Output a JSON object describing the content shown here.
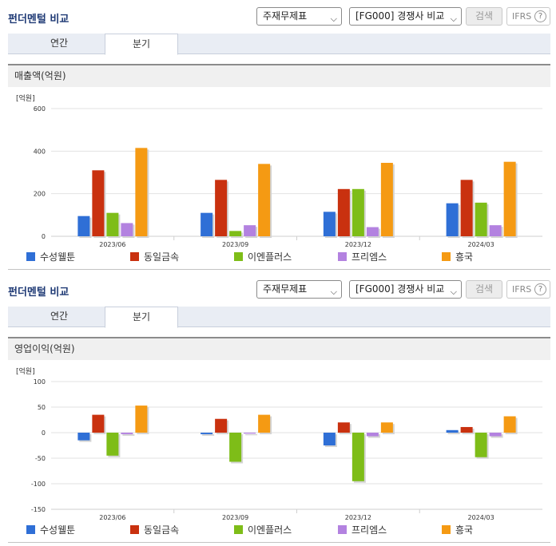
{
  "panels": [
    {
      "title": "펀더멘털 비교",
      "select_statement": "주재무제표",
      "select_compare": "[FG000] 경쟁사 비교",
      "search_label": "검색",
      "ifrs_label": "IFRS",
      "ifrs_help": "?",
      "tabs": [
        "연간",
        "분기"
      ],
      "active_tab": "분기",
      "section_label": "매출액(억원)"
    },
    {
      "title": "펀더멘털 비교",
      "select_statement": "주재무제표",
      "select_compare": "[FG000] 경쟁사 비교",
      "search_label": "검색",
      "ifrs_label": "IFRS",
      "ifrs_help": "?",
      "tabs": [
        "연간",
        "분기"
      ],
      "active_tab": "분기",
      "section_label": "영업이익(억원)"
    }
  ],
  "chart_data": [
    {
      "type": "bar",
      "unit_label": "[억원]",
      "categories": [
        "2023/06",
        "2023/09",
        "2023/12",
        "2024/03"
      ],
      "ylim": [
        0,
        600
      ],
      "yticks": [
        0,
        200,
        400,
        600
      ],
      "grid": true,
      "legend_position": "bottom",
      "series": [
        {
          "name": "수성웰툰",
          "color": "#2f6fd6",
          "values": [
            95,
            110,
            115,
            155
          ]
        },
        {
          "name": "동일금속",
          "color": "#c9310f",
          "values": [
            310,
            265,
            222,
            265
          ]
        },
        {
          "name": "이엔플러스",
          "color": "#7ebd18",
          "values": [
            110,
            25,
            222,
            158
          ]
        },
        {
          "name": "프리엠스",
          "color": "#b382e0",
          "values": [
            62,
            52,
            43,
            52
          ]
        },
        {
          "name": "흥국",
          "color": "#f59a13",
          "values": [
            415,
            340,
            345,
            350
          ]
        }
      ]
    },
    {
      "type": "bar",
      "unit_label": "[억원]",
      "categories": [
        "2023/06",
        "2023/09",
        "2023/12",
        "2024/03"
      ],
      "ylim": [
        -150,
        100
      ],
      "yticks": [
        -150,
        -100,
        -50,
        0,
        50,
        100
      ],
      "grid": true,
      "legend_position": "bottom",
      "series": [
        {
          "name": "수성웰툰",
          "color": "#2f6fd6",
          "values": [
            -15,
            -3,
            -25,
            5
          ]
        },
        {
          "name": "동일금속",
          "color": "#c9310f",
          "values": [
            35,
            27,
            20,
            11
          ]
        },
        {
          "name": "이엔플러스",
          "color": "#7ebd18",
          "values": [
            -45,
            -57,
            -95,
            -48
          ]
        },
        {
          "name": "프리엠스",
          "color": "#b382e0",
          "values": [
            -3,
            -2,
            -7,
            -7
          ]
        },
        {
          "name": "흥국",
          "color": "#f59a13",
          "values": [
            53,
            35,
            20,
            32
          ]
        }
      ]
    }
  ]
}
